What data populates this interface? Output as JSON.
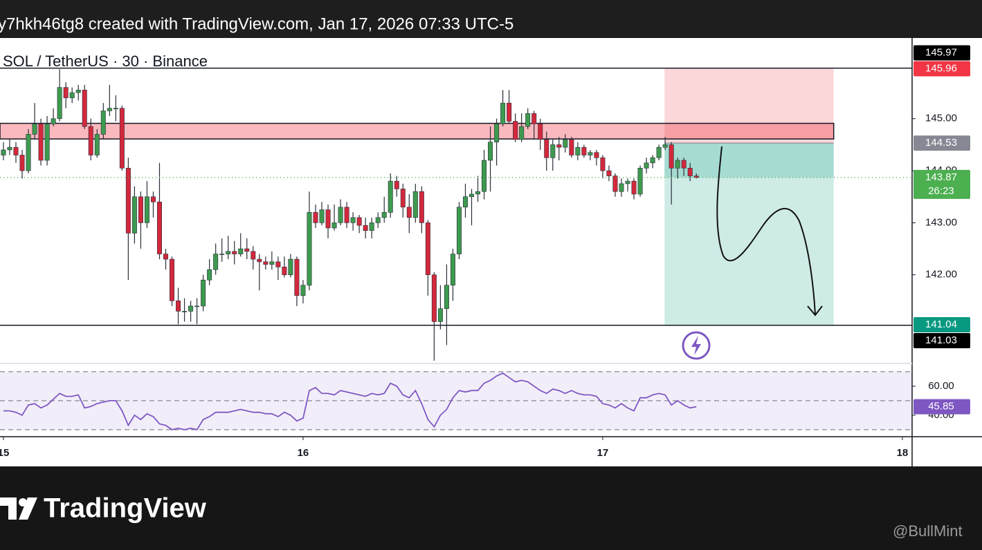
{
  "header": "y7hkh46tg8 created with TradingView.com, Jan 17, 2026 07:33 UTC-5",
  "footer": {
    "brand": "TradingView",
    "watermark": "@BullMint"
  },
  "chart_data": {
    "type": "candlestick",
    "title": "SOL / TetherUS · 30 · Binance",
    "up_color": "#3d9a4f",
    "down_color": "#d3283c",
    "xlim": [
      -0.55,
      145.56
    ],
    "xticks": [
      {
        "value": 0,
        "label": "15"
      },
      {
        "value": 48,
        "label": "16"
      },
      {
        "value": 96,
        "label": "17"
      },
      {
        "value": 144,
        "label": "18"
      }
    ],
    "ylim": [
      140.31,
      146.55
    ],
    "yticks": [
      {
        "value": 142,
        "label": "142.00"
      },
      {
        "value": 143,
        "label": "143.00"
      },
      {
        "value": 144,
        "label": "144.00"
      },
      {
        "value": 145,
        "label": "145.00"
      }
    ],
    "ohlc": [
      [
        144.3,
        144.55,
        144.2,
        144.4
      ],
      [
        144.4,
        144.6,
        144.3,
        144.45
      ],
      [
        144.45,
        144.55,
        144.15,
        144.3
      ],
      [
        144.3,
        144.4,
        143.85,
        144.0
      ],
      [
        144.0,
        144.8,
        143.95,
        144.7
      ],
      [
        144.7,
        145.3,
        144.6,
        144.9
      ],
      [
        144.9,
        145.0,
        144.1,
        144.2
      ],
      [
        144.2,
        145.05,
        144.1,
        144.9
      ],
      [
        144.9,
        145.2,
        144.85,
        145.0
      ],
      [
        145.0,
        145.95,
        144.95,
        145.6
      ],
      [
        145.6,
        145.7,
        145.2,
        145.4
      ],
      [
        145.4,
        145.6,
        145.3,
        145.5
      ],
      [
        145.5,
        145.65,
        145.35,
        145.55
      ],
      [
        145.55,
        145.65,
        144.8,
        144.85
      ],
      [
        144.85,
        145.0,
        144.2,
        144.3
      ],
      [
        144.3,
        144.8,
        144.25,
        144.7
      ],
      [
        144.7,
        145.3,
        144.6,
        145.15
      ],
      [
        145.15,
        145.65,
        145.05,
        145.2
      ],
      [
        145.2,
        145.45,
        144.95,
        145.2
      ],
      [
        145.2,
        145.25,
        144.0,
        144.05
      ],
      [
        144.05,
        144.25,
        141.9,
        142.8
      ],
      [
        142.8,
        143.7,
        142.6,
        143.5
      ],
      [
        143.5,
        143.6,
        142.5,
        143.0
      ],
      [
        143.0,
        143.8,
        142.9,
        143.5
      ],
      [
        143.5,
        143.6,
        143.1,
        143.4
      ],
      [
        143.4,
        144.15,
        142.3,
        142.4
      ],
      [
        142.4,
        142.5,
        142.1,
        142.3
      ],
      [
        142.3,
        142.35,
        141.4,
        141.5
      ],
      [
        141.5,
        141.75,
        141.05,
        141.3
      ],
      [
        141.3,
        141.55,
        141.1,
        141.3
      ],
      [
        141.3,
        141.5,
        141.1,
        141.4
      ],
      [
        141.4,
        141.55,
        141.05,
        141.4
      ],
      [
        141.4,
        142.0,
        141.3,
        141.9
      ],
      [
        141.9,
        142.3,
        141.8,
        142.1
      ],
      [
        142.1,
        142.6,
        142.0,
        142.4
      ],
      [
        142.4,
        142.7,
        142.25,
        142.4
      ],
      [
        142.4,
        142.75,
        142.3,
        142.45
      ],
      [
        142.45,
        142.65,
        142.2,
        142.4
      ],
      [
        142.4,
        142.8,
        142.35,
        142.5
      ],
      [
        142.5,
        142.7,
        142.3,
        142.45
      ],
      [
        142.45,
        142.55,
        142.1,
        142.3
      ],
      [
        142.3,
        142.4,
        141.7,
        142.25
      ],
      [
        142.25,
        142.35,
        142.1,
        142.2
      ],
      [
        142.2,
        142.45,
        142.1,
        142.25
      ],
      [
        142.25,
        142.35,
        141.9,
        142.15
      ],
      [
        142.15,
        142.35,
        141.95,
        142.0
      ],
      [
        142.0,
        142.4,
        141.95,
        142.3
      ],
      [
        142.3,
        142.35,
        141.4,
        141.6
      ],
      [
        141.6,
        141.9,
        141.45,
        141.8
      ],
      [
        141.8,
        143.6,
        141.7,
        143.2
      ],
      [
        143.2,
        143.35,
        142.9,
        143.0
      ],
      [
        143.0,
        143.4,
        142.95,
        143.25
      ],
      [
        143.25,
        143.35,
        142.7,
        142.9
      ],
      [
        142.9,
        143.35,
        142.85,
        143.0
      ],
      [
        143.0,
        143.45,
        142.95,
        143.3
      ],
      [
        143.3,
        143.4,
        142.9,
        143.0
      ],
      [
        143.0,
        143.2,
        142.85,
        143.1
      ],
      [
        143.1,
        143.15,
        142.8,
        142.95
      ],
      [
        142.95,
        143.1,
        142.7,
        142.85
      ],
      [
        142.85,
        143.1,
        142.7,
        143.0
      ],
      [
        143.0,
        143.2,
        142.9,
        143.1
      ],
      [
        143.1,
        143.5,
        143.0,
        143.2
      ],
      [
        143.2,
        143.95,
        143.1,
        143.8
      ],
      [
        143.8,
        143.9,
        143.5,
        143.65
      ],
      [
        143.65,
        143.75,
        143.1,
        143.3
      ],
      [
        143.3,
        143.55,
        142.8,
        143.1
      ],
      [
        143.1,
        143.75,
        143.0,
        143.6
      ],
      [
        143.6,
        143.7,
        142.8,
        143.0
      ],
      [
        143.0,
        143.05,
        141.6,
        142.0
      ],
      [
        142.0,
        142.05,
        140.35,
        141.1
      ],
      [
        141.1,
        141.8,
        140.95,
        141.35
      ],
      [
        141.35,
        142.2,
        140.65,
        141.8
      ],
      [
        141.8,
        142.5,
        141.5,
        142.4
      ],
      [
        142.4,
        143.4,
        142.3,
        143.3
      ],
      [
        143.3,
        143.75,
        143.1,
        143.5
      ],
      [
        143.5,
        143.65,
        142.95,
        143.55
      ],
      [
        143.55,
        143.9,
        143.4,
        143.6
      ],
      [
        143.6,
        144.4,
        143.45,
        144.2
      ],
      [
        144.2,
        144.85,
        143.6,
        144.55
      ],
      [
        144.55,
        145.0,
        144.1,
        144.9
      ],
      [
        144.9,
        145.55,
        144.85,
        145.3
      ],
      [
        145.3,
        145.55,
        144.9,
        144.95
      ],
      [
        144.95,
        145.1,
        144.55,
        144.6
      ],
      [
        144.6,
        145.1,
        144.55,
        144.85
      ],
      [
        144.85,
        145.2,
        144.8,
        145.1
      ],
      [
        145.1,
        145.15,
        144.6,
        144.9
      ],
      [
        144.9,
        145.0,
        144.4,
        144.6
      ],
      [
        144.6,
        144.75,
        144.0,
        144.25
      ],
      [
        144.25,
        144.6,
        144.0,
        144.5
      ],
      [
        144.5,
        144.65,
        144.2,
        144.45
      ],
      [
        144.45,
        144.7,
        144.35,
        144.6
      ],
      [
        144.6,
        144.65,
        144.25,
        144.3
      ],
      [
        144.3,
        144.55,
        144.2,
        144.45
      ],
      [
        144.45,
        144.5,
        144.25,
        144.3
      ],
      [
        144.3,
        144.4,
        144.2,
        144.35
      ],
      [
        144.35,
        144.4,
        144.1,
        144.25
      ],
      [
        144.25,
        144.3,
        143.85,
        144.0
      ],
      [
        144.0,
        144.1,
        143.8,
        143.9
      ],
      [
        143.9,
        143.95,
        143.5,
        143.6
      ],
      [
        143.6,
        143.85,
        143.5,
        143.75
      ],
      [
        143.75,
        143.85,
        143.6,
        143.8
      ],
      [
        143.8,
        143.85,
        143.45,
        143.55
      ],
      [
        143.55,
        144.1,
        143.5,
        144.05
      ],
      [
        144.05,
        144.25,
        143.95,
        144.15
      ],
      [
        144.15,
        144.3,
        144.05,
        144.25
      ],
      [
        144.25,
        144.5,
        144.2,
        144.45
      ],
      [
        144.45,
        144.65,
        144.4,
        144.5
      ],
      [
        144.5,
        144.55,
        143.35,
        144.05
      ],
      [
        144.05,
        144.25,
        143.85,
        144.2
      ],
      [
        144.2,
        144.25,
        143.9,
        144.05
      ],
      [
        144.05,
        144.15,
        143.8,
        143.9
      ],
      [
        143.9,
        143.95,
        143.85,
        143.87
      ]
    ],
    "levels": [
      145.97,
      141.03
    ],
    "zone": {
      "from": 144.61,
      "to": 144.91,
      "color": "#f23645"
    },
    "position": {
      "entry": 144.53,
      "stop": 145.96,
      "target": 141.04,
      "start": 105.9,
      "end": 133.0
    },
    "price_labels": [
      {
        "value": 145.96,
        "label": "145.96",
        "color": "#f23645"
      },
      {
        "value": 145.97,
        "label": "145.97",
        "color": "#000000"
      },
      {
        "value": 144.53,
        "label": "144.53",
        "color": "#868993"
      },
      {
        "value": 143.87,
        "label": "143.87",
        "countdown": "26:23",
        "color": "#4caf50"
      },
      {
        "value": 141.04,
        "label": "141.04",
        "color": "#089981"
      },
      {
        "value": 141.03,
        "label": "141.03",
        "color": "#000000"
      }
    ],
    "rsi": {
      "color": "#7e57c2",
      "ylim": [
        25.2,
        75.2
      ],
      "yticks": [
        {
          "value": 60,
          "label": "60.00"
        },
        {
          "value": 40,
          "label": "40.00"
        }
      ],
      "bands": [
        70,
        50,
        30
      ],
      "last": {
        "value": 45.85,
        "label": "45.85"
      },
      "values": [
        43,
        43,
        42,
        40,
        47,
        48,
        45,
        47,
        51,
        55,
        53,
        53,
        54,
        45,
        46,
        48,
        49,
        50,
        50,
        43,
        33,
        40,
        37,
        41,
        39,
        34,
        33,
        30,
        31,
        30,
        31,
        30,
        37,
        39,
        42,
        42,
        42,
        43,
        44,
        43,
        42,
        42,
        41,
        41,
        39,
        42,
        40,
        36,
        38,
        57,
        59,
        55,
        55,
        54,
        57,
        56,
        55,
        54,
        53,
        55,
        54,
        55,
        62,
        60,
        54,
        52,
        57,
        48,
        37,
        32,
        40,
        44,
        52,
        57,
        56,
        57,
        57,
        62,
        64,
        67,
        69,
        66,
        63,
        64,
        63,
        60,
        57,
        55,
        58,
        57,
        55,
        57,
        55,
        54,
        54,
        53,
        48,
        47,
        45,
        48,
        45,
        43,
        52,
        52,
        54,
        55,
        54,
        47,
        50,
        47,
        45,
        45.85
      ]
    }
  }
}
